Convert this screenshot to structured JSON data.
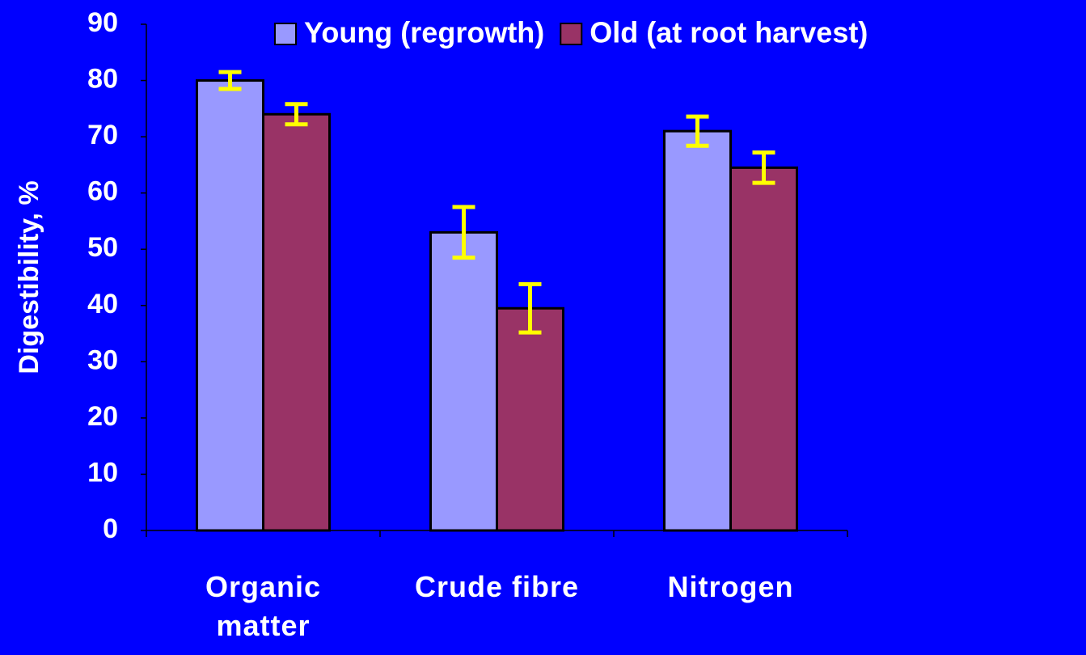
{
  "chart_data": {
    "type": "bar",
    "y_label": "Digestibility, %",
    "categories": [
      "Organic matter",
      "Crude fibre",
      "Nitrogen"
    ],
    "series": [
      {
        "name": "Young (regrowth)",
        "color": "#9999ff",
        "values": [
          80,
          53,
          71
        ],
        "errors": [
          1.5,
          4.5,
          2.6
        ]
      },
      {
        "name": "Old (at root harvest)",
        "color": "#993366",
        "values": [
          74,
          39.5,
          64.5
        ],
        "errors": [
          1.8,
          4.3,
          2.7
        ]
      }
    ],
    "error_color": "#ffff00",
    "ylim": [
      0,
      90
    ],
    "yticks": [
      0,
      10,
      20,
      30,
      40,
      50,
      60,
      70,
      80,
      90
    ],
    "grid": false,
    "legend": "top"
  }
}
